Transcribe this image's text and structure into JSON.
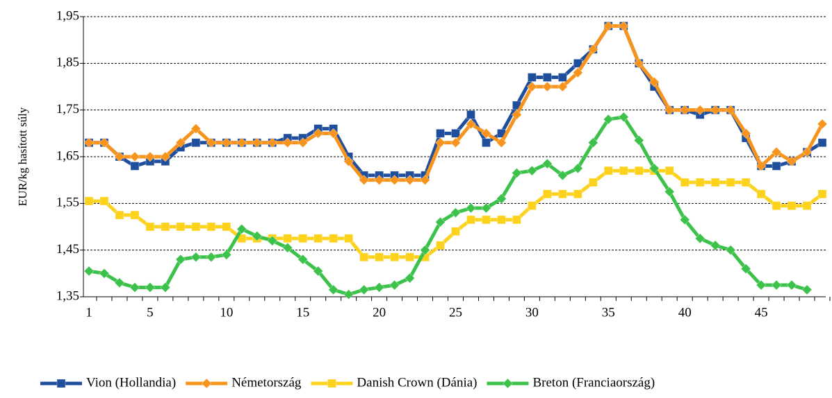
{
  "chart_data": {
    "type": "line",
    "y_label": "EUR/kg hasított súly",
    "categories": [
      "1",
      null,
      null,
      null,
      "5",
      null,
      null,
      null,
      null,
      "10",
      null,
      null,
      null,
      null,
      "15",
      null,
      null,
      null,
      null,
      "20",
      null,
      null,
      null,
      null,
      "25",
      null,
      null,
      null,
      null,
      "30",
      null,
      null,
      null,
      null,
      "35",
      null,
      null,
      null,
      null,
      "40",
      null,
      null,
      null,
      null,
      "45",
      null,
      null,
      null,
      null
    ],
    "series": [
      {
        "name": "Vion (Hollandia)",
        "color": "#1f4e9c",
        "marker": "square",
        "values": [
          1.68,
          1.68,
          1.65,
          1.63,
          1.64,
          1.64,
          1.67,
          1.68,
          1.68,
          1.68,
          1.68,
          1.68,
          1.68,
          1.69,
          1.69,
          1.71,
          1.71,
          1.65,
          1.61,
          1.61,
          1.61,
          1.61,
          1.61,
          1.7,
          1.7,
          1.74,
          1.68,
          1.7,
          1.76,
          1.82,
          1.82,
          1.82,
          1.85,
          1.88,
          1.93,
          1.93,
          1.85,
          1.8,
          1.75,
          1.75,
          1.74,
          1.75,
          1.75,
          1.69,
          1.63,
          1.63,
          1.64,
          1.66,
          1.68
        ]
      },
      {
        "name": "Németország",
        "color": "#f7941d",
        "marker": "diamond",
        "values": [
          1.68,
          1.68,
          1.65,
          1.65,
          1.65,
          1.65,
          1.68,
          1.71,
          1.68,
          1.68,
          1.68,
          1.68,
          1.68,
          1.68,
          1.68,
          1.7,
          1.7,
          1.64,
          1.6,
          1.6,
          1.6,
          1.6,
          1.6,
          1.68,
          1.68,
          1.72,
          1.7,
          1.68,
          1.74,
          1.8,
          1.8,
          1.8,
          1.83,
          1.88,
          1.93,
          1.93,
          1.85,
          1.81,
          1.75,
          1.75,
          1.75,
          1.75,
          1.75,
          1.7,
          1.63,
          1.66,
          1.64,
          1.66,
          1.72
        ]
      },
      {
        "name": "Danish Crown (Dánia)",
        "color": "#fcd21c",
        "marker": "square",
        "values": [
          1.555,
          1.555,
          1.525,
          1.525,
          1.5,
          1.5,
          1.5,
          1.5,
          1.5,
          1.5,
          1.475,
          1.475,
          1.475,
          1.475,
          1.475,
          1.475,
          1.475,
          1.475,
          1.435,
          1.435,
          1.435,
          1.435,
          1.435,
          1.46,
          1.49,
          1.515,
          1.515,
          1.515,
          1.515,
          1.545,
          1.57,
          1.57,
          1.57,
          1.595,
          1.62,
          1.62,
          1.62,
          1.62,
          1.62,
          1.595,
          1.595,
          1.595,
          1.595,
          1.595,
          1.57,
          1.545,
          1.545,
          1.545,
          1.57
        ]
      },
      {
        "name": "Breton (Franciaország)",
        "color": "#3cc24a",
        "marker": "diamond",
        "values": [
          1.405,
          1.4,
          1.38,
          1.37,
          1.37,
          1.37,
          1.43,
          1.435,
          1.435,
          1.44,
          1.495,
          1.48,
          1.47,
          1.455,
          1.43,
          1.405,
          1.365,
          1.355,
          1.365,
          1.37,
          1.375,
          1.39,
          1.45,
          1.51,
          1.53,
          1.54,
          1.54,
          1.56,
          1.615,
          1.62,
          1.635,
          1.61,
          1.625,
          1.68,
          1.73,
          1.735,
          1.685,
          1.625,
          1.575,
          1.515,
          1.475,
          1.46,
          1.45,
          1.41,
          1.375,
          1.375,
          1.375,
          1.365,
          null
        ]
      }
    ],
    "ylim": [
      1.35,
      1.95
    ],
    "yticks": [
      {
        "value": 1.35,
        "label": "1,35"
      },
      {
        "value": 1.45,
        "label": "1,45"
      },
      {
        "value": 1.55,
        "label": "1,55"
      },
      {
        "value": 1.65,
        "label": "1,65"
      },
      {
        "value": 1.75,
        "label": "1,75"
      },
      {
        "value": 1.85,
        "label": "1,85"
      },
      {
        "value": 1.95,
        "label": "1,95"
      }
    ],
    "grid": true,
    "legend": "bottom"
  }
}
